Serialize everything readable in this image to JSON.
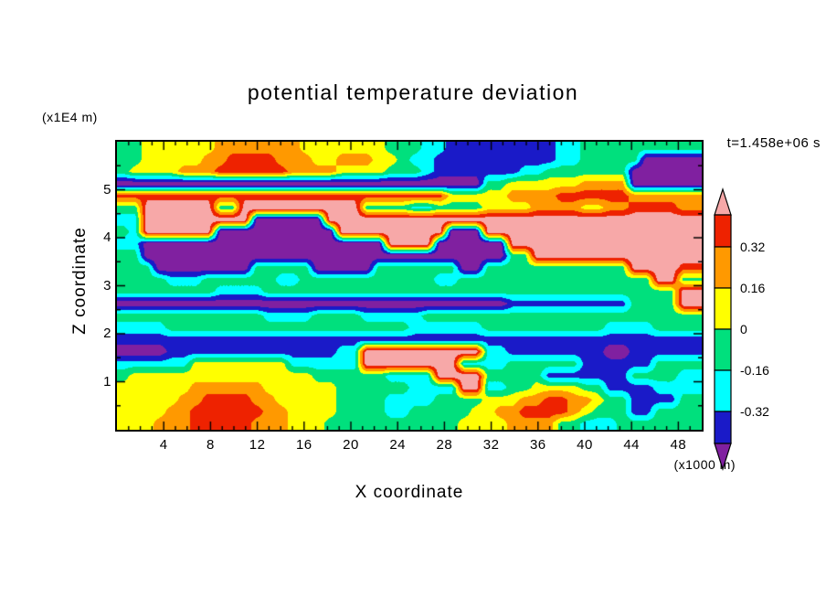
{
  "figure": {
    "background": "#ffffff"
  },
  "chart_data": {
    "type": "heatmap",
    "title": "potential temperature deviation",
    "xlabel": "X coordinate",
    "x_unit": "(x1000 m)",
    "ylabel": "Z coordinate",
    "y_unit": "(x1E4 m)",
    "time_annotation": "t=1.458e+06 s",
    "x_range": [
      0,
      50
    ],
    "y_range": [
      0,
      6
    ],
    "x_ticks": [
      4,
      8,
      12,
      16,
      20,
      24,
      28,
      32,
      36,
      40,
      44,
      48
    ],
    "y_ticks": [
      1,
      2,
      3,
      4,
      5
    ],
    "contour_levels": [
      -0.48,
      -0.32,
      -0.16,
      0,
      0.16,
      0.32,
      0.48
    ],
    "colorbar_tick_labels": [
      "0.32",
      "0.16",
      "0",
      "-0.16",
      "-0.32"
    ],
    "colors": [
      "#8020a0",
      "#1a1ac8",
      "#00ffff",
      "#00e07d",
      "#ffff00",
      "#ff9900",
      "#ee2200",
      "#f7a8a8"
    ],
    "value_key": {
      "U": -0.6,
      "B": -0.4,
      "C": -0.24,
      "G": -0.08,
      "Y": 0.08,
      "O": 0.24,
      "R": 0.4,
      "P": 0.6
    },
    "grid_note": "Coarse 48x24 sample of the filled-contour deviation field; letters map to value_key; row 0 = top of plot (z=6), row 23 = bottom (z=0).",
    "grid_rows_top_to_bottom": [
      "GGYYYYYYOOOOOOOYYYYYYYGGGCCBBBBBBBBBCCGGGGGGGGGG",
      "GGYYYYYOORRRROOOYYOOOYYGCCBBBBBBBBBBCCGGGGGUUUUU",
      "GYYYYOOORRRRRROOOOYYYYGGGCBBBBBBBCCGGGGGGGUUUUUU",
      "UUUUUUUUUUUUUUUUUUUUUUUUUUUUUUGGYYYYYYOOOOUUUUUU",
      "RRRRRRRRRRRRRRRRRRRRRRRRRRRYYYYYOOOORRRRRROOOOOO",
      "GGPPPPPPGGPPPPPPPPPPGGGGCCGGGGYYYYOOOOYYOORRRROO",
      "CCPPPPPPPPPUUUUUUPPPPPPPPPPPPPPPPPPPPPPPPPPPPPPP",
      "GCPPPPPPUUUUUUUUUUPPPPPPPPPUUUPPPPPPPPPPPPPPPPPP",
      "CCUUUUUUUUUUUUUUUUUUUUPPPPUUUUUUPPPPPPPPPPPPPPPP",
      "GGUUUUUUUUUUUUUUUUUUUUUUUUUUUUUUGGPPPPPPPPPPPPPP",
      "GGGUUUUUUUUGGGGGUUUUUGGGGGGGUUGGGGGGGGGGGGPPPPRR",
      "GGGGCCCGGGGGGCCGGGGGGGGGGGCCGGGGGGGGGGGGGGGGPPGG",
      "GGGGGGGGCCCCGGGGGGGGGGGGGGGGGGGGGGGGGGGGGGGGGGPP",
      "UUUUUUUUUUUUUUUUUUUUUUUUUUUUUUUUBBBBBBBBBBGGGGPP",
      "GGGGGGGGGGGGCCCCGGGGCCCCCGGGGGGGGGGGGGGGGGGGGGGG",
      "CCCCGGGGGGGGGGGGGGGGGGGGCCCCCCGGGGGGGGGGCCCCGGGG",
      "BBBBBBBBBBBBBBBBBBBBBBBBBBBBBBBBBBBBBBBBBBBBBBBB",
      "UUUUBBBBBBBBBBBBBBCCPPPPPPPPPPCCBBBBBBBBUUBBBBBB",
      "CCCCCCYYYYYYYYCCCCCCPPPPPPPPCCCCGGGGGGBBBBBBGGGG",
      "GYYYYYYYYYYYYYYYGGGGGGCCCCPPPPGGGGGBBBBBBBGGGGCC",
      "YYYYYYOOOOOOYYYYYYGGGGGGCCCCPPCCGGYYYYGGBBBBCCCC",
      "YYYYYOORRRROOYYYYYGGGGCCCCGGGGYYYOORROOYGGBBBBGG",
      "YYYYOORRRRRROOYYYYGGGGCCGGGGGYYOORRRROYGGGBBGGGG",
      "YYYOOORRRRROOOYYYGGGGGGGGGGGYYYYOOOOGGCCCGGGGGGG"
    ]
  }
}
